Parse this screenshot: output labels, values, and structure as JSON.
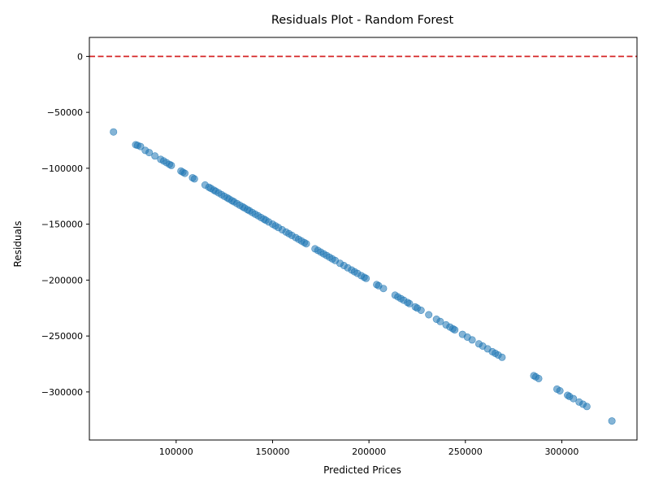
{
  "chart_data": {
    "type": "scatter",
    "title": "Residuals Plot - Random Forest",
    "xlabel": "Predicted Prices",
    "ylabel": "Residuals",
    "xlim": [
      55000,
      339000
    ],
    "ylim": [
      -343000,
      17000
    ],
    "xticks": [
      100000,
      150000,
      200000,
      250000,
      300000
    ],
    "yticks": [
      0,
      -50000,
      -100000,
      -150000,
      -200000,
      -250000,
      -300000
    ],
    "grid": false,
    "point_color": "#1f77b4",
    "point_alpha": 0.55,
    "reference_line": {
      "y": 0,
      "color": "#d62728",
      "style": "dashed"
    },
    "points": [
      [
        67500,
        -67500
      ],
      [
        79000,
        -79000
      ],
      [
        80000,
        -79500
      ],
      [
        81500,
        -80500
      ],
      [
        84000,
        -84000
      ],
      [
        86000,
        -86000
      ],
      [
        89000,
        -89000
      ],
      [
        92000,
        -92000
      ],
      [
        93500,
        -93500
      ],
      [
        95000,
        -95000
      ],
      [
        96500,
        -96500
      ],
      [
        97500,
        -97500
      ],
      [
        102500,
        -102500
      ],
      [
        103500,
        -103500
      ],
      [
        104500,
        -104500
      ],
      [
        108500,
        -108500
      ],
      [
        109500,
        -109500
      ],
      [
        115000,
        -115000
      ],
      [
        117000,
        -117000
      ],
      [
        118000,
        -118000
      ],
      [
        119500,
        -119500
      ],
      [
        120500,
        -120500
      ],
      [
        122000,
        -122000
      ],
      [
        123500,
        -123500
      ],
      [
        125000,
        -125000
      ],
      [
        126500,
        -126500
      ],
      [
        127500,
        -127500
      ],
      [
        129000,
        -129000
      ],
      [
        130000,
        -130000
      ],
      [
        131500,
        -131500
      ],
      [
        133000,
        -133000
      ],
      [
        134500,
        -134500
      ],
      [
        135500,
        -135500
      ],
      [
        137000,
        -137000
      ],
      [
        138000,
        -138000
      ],
      [
        139500,
        -139500
      ],
      [
        141000,
        -141000
      ],
      [
        142500,
        -142500
      ],
      [
        144000,
        -144000
      ],
      [
        145500,
        -145500
      ],
      [
        146500,
        -146500
      ],
      [
        148000,
        -148000
      ],
      [
        150000,
        -150000
      ],
      [
        151500,
        -151500
      ],
      [
        153000,
        -153000
      ],
      [
        155000,
        -155000
      ],
      [
        157000,
        -157000
      ],
      [
        158500,
        -158500
      ],
      [
        160000,
        -160000
      ],
      [
        162000,
        -162000
      ],
      [
        163500,
        -163500
      ],
      [
        165000,
        -165000
      ],
      [
        166500,
        -166500
      ],
      [
        167500,
        -167500
      ],
      [
        172000,
        -172000
      ],
      [
        173500,
        -173500
      ],
      [
        175000,
        -175000
      ],
      [
        176500,
        -176500
      ],
      [
        178000,
        -178000
      ],
      [
        179500,
        -179500
      ],
      [
        181000,
        -181000
      ],
      [
        182500,
        -182500
      ],
      [
        185000,
        -185000
      ],
      [
        187000,
        -187000
      ],
      [
        189000,
        -189000
      ],
      [
        191000,
        -191000
      ],
      [
        192500,
        -192500
      ],
      [
        194000,
        -194000
      ],
      [
        196000,
        -196000
      ],
      [
        197500,
        -197500
      ],
      [
        198500,
        -198500
      ],
      [
        204000,
        -204000
      ],
      [
        205000,
        -205000
      ],
      [
        207500,
        -207500
      ],
      [
        213500,
        -213500
      ],
      [
        215000,
        -215000
      ],
      [
        216500,
        -216500
      ],
      [
        218000,
        -218000
      ],
      [
        220000,
        -220000
      ],
      [
        221000,
        -221000
      ],
      [
        224000,
        -224000
      ],
      [
        225000,
        -225000
      ],
      [
        227000,
        -227000
      ],
      [
        231000,
        -231000
      ],
      [
        235000,
        -235000
      ],
      [
        237000,
        -237000
      ],
      [
        240000,
        -240000
      ],
      [
        242000,
        -242000
      ],
      [
        243500,
        -243500
      ],
      [
        244500,
        -244500
      ],
      [
        248500,
        -248500
      ],
      [
        251000,
        -251000
      ],
      [
        253500,
        -253500
      ],
      [
        257000,
        -257000
      ],
      [
        259000,
        -259000
      ],
      [
        261500,
        -261500
      ],
      [
        264000,
        -264000
      ],
      [
        265500,
        -265500
      ],
      [
        267000,
        -267000
      ],
      [
        269000,
        -269000
      ],
      [
        285500,
        -285500
      ],
      [
        286500,
        -286500
      ],
      [
        288000,
        -288000
      ],
      [
        297500,
        -297500
      ],
      [
        299000,
        -299000
      ],
      [
        303000,
        -303000
      ],
      [
        304000,
        -304000
      ],
      [
        306000,
        -306000
      ],
      [
        309000,
        -309000
      ],
      [
        311000,
        -311000
      ],
      [
        313000,
        -313000
      ],
      [
        326000,
        -326000
      ]
    ]
  }
}
